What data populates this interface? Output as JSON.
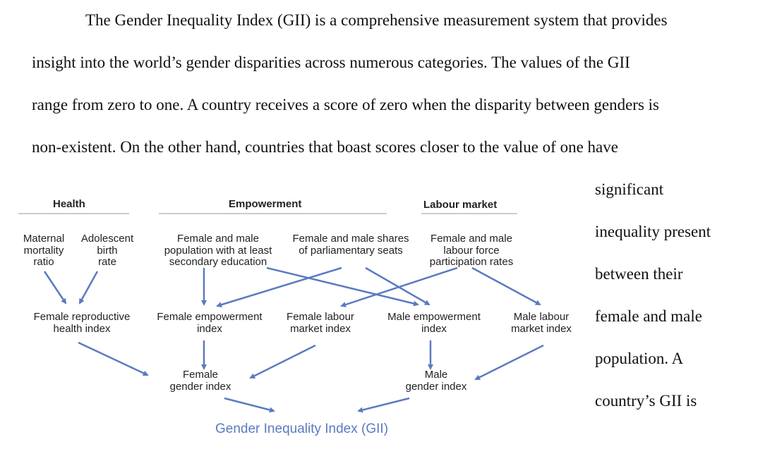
{
  "paragraph": {
    "line1": "The Gender Inequality Index (GII) is a comprehensive measurement system that provides",
    "line2": "insight into the world’s gender disparities across numerous categories. The values of the GII",
    "line3": "range from zero to one. A country receives a score of zero when the disparity between genders is",
    "line4": "non-existent. On the other hand, countries that boast scores closer to the value of one have"
  },
  "side_text": [
    "significant",
    "inequality present",
    "between their",
    "female and male",
    "population. A",
    "country’s GII is"
  ],
  "diagram": {
    "dimensions": {
      "health": "Health",
      "empowerment": "Empowerment",
      "labour_market": "Labour market"
    },
    "indicators": {
      "maternal_mortality": "Maternal\nmortality\nratio",
      "adolescent_birth": "Adolescent\nbirth\nrate",
      "secondary_education": "Female and male\npopulation with at least\nsecondary education",
      "parliamentary_seats": "Female and male shares\nof parliamentary seats",
      "labour_force": "Female and male\nlabour force\nparticipation rates"
    },
    "indices": {
      "female_reproductive_health": "Female reproductive\nhealth index",
      "female_empowerment": "Female empowerment\nindex",
      "female_labour_market": "Female labour\nmarket index",
      "male_empowerment": "Male empowerment\nindex",
      "male_labour_market": "Male labour\nmarket index"
    },
    "gender_indices": {
      "female": "Female\ngender index",
      "male": "Male\ngender index"
    },
    "final": "Gender Inequality Index (GII)",
    "colors": {
      "arrow": "#5b7bbf",
      "rule": "#999999",
      "gii_text": "#5b7bbf"
    }
  }
}
